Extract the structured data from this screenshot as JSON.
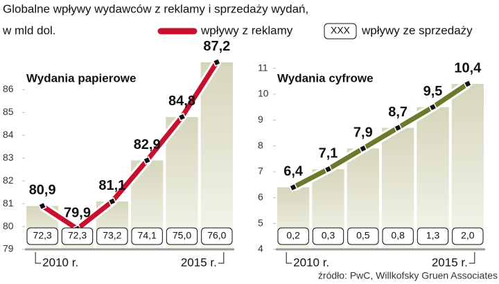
{
  "header": {
    "title": "Globalne wpływy wydawców z reklamy i sprzedaży wydań,",
    "unit": "w mld dol."
  },
  "legend": {
    "line_name": "wpływy z reklamy",
    "line_color": "#c8102e",
    "box_sample": "XXX",
    "box_name": "wpływy ze sprzedaży"
  },
  "source": "źródło: PwC, Willkofsky Gruen Associates",
  "chart_data": [
    {
      "type": "line",
      "title": "Wydania papierowe",
      "categories": [
        "2010 r.",
        null,
        null,
        null,
        null,
        "2015 r."
      ],
      "series": [
        {
          "color": "#c8102e",
          "values": [
            80.9,
            79.9,
            81.1,
            82.9,
            84.8,
            87.2
          ],
          "value_labels": [
            "80,9",
            "79,9",
            "81,1",
            "82,9",
            "84,8",
            "87,2"
          ]
        }
      ],
      "boxes": {
        "values": [
          72.3,
          72.3,
          73.2,
          74.1,
          75.0,
          76.0
        ],
        "value_labels": [
          "72,3",
          "72,3",
          "73,2",
          "74,1",
          "75,0",
          "76,0"
        ]
      },
      "ylim": [
        79,
        87.5
      ],
      "yticks": [
        79,
        80,
        81,
        82,
        83,
        84,
        85,
        86
      ]
    },
    {
      "type": "line",
      "title": "Wydania cyfrowe",
      "categories": [
        "2010 r.",
        null,
        null,
        null,
        null,
        "2015 r."
      ],
      "series": [
        {
          "color": "#6b7a2a",
          "values": [
            6.4,
            7.1,
            7.9,
            8.7,
            9.5,
            10.4
          ],
          "value_labels": [
            "6,4",
            "7,1",
            "7,9",
            "8,7",
            "9,5",
            "10,4"
          ]
        }
      ],
      "boxes": {
        "values": [
          0.2,
          0.3,
          0.5,
          0.8,
          1.3,
          2.0
        ],
        "value_labels": [
          "0,2",
          "0,3",
          "0,5",
          "0,8",
          "1,3",
          "2,0"
        ]
      },
      "ylim": [
        4,
        11.5
      ],
      "yticks": [
        4,
        5,
        6,
        7,
        8,
        9,
        10,
        11
      ]
    }
  ]
}
